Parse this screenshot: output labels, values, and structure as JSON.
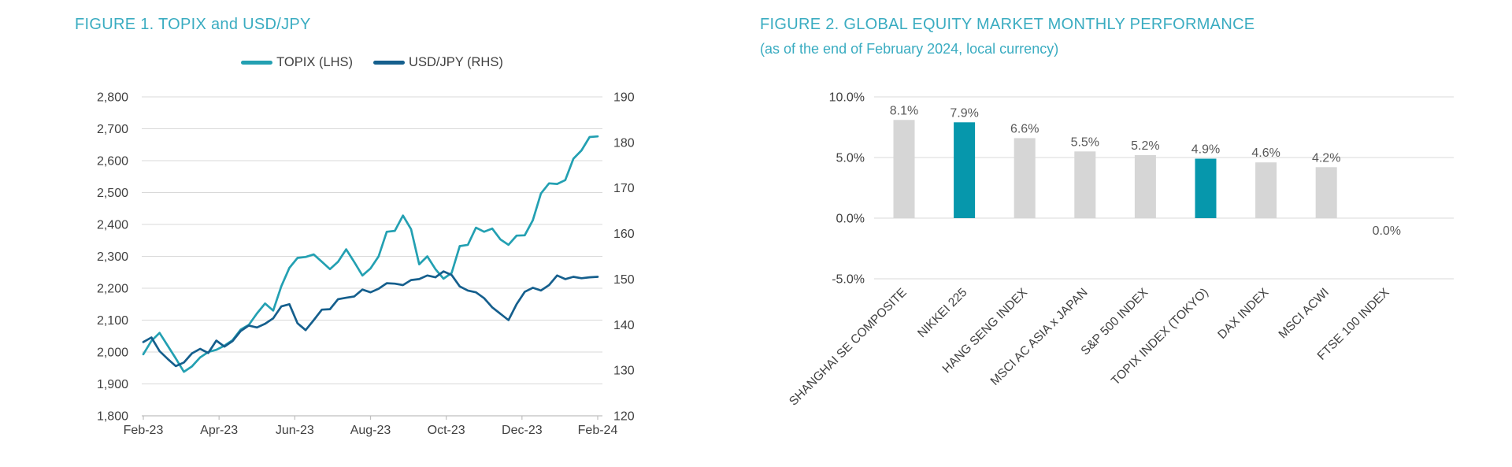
{
  "accent_color": "#3AACC1",
  "chart_data": [
    {
      "type": "line",
      "title": "FIGURE 1. TOPIX and USD/JPY",
      "legend_position": "top",
      "grid": true,
      "x_tick_labels": [
        "Feb-23",
        "Apr-23",
        "Jun-23",
        "Aug-23",
        "Oct-23",
        "Dec-23",
        "Feb-24"
      ],
      "left_axis": {
        "min": 1800,
        "max": 2800,
        "step": 100,
        "tick_labels": [
          "2,800",
          "2,700",
          "2,600",
          "2,500",
          "2,400",
          "2,300",
          "2,200",
          "2,100",
          "2,000",
          "1,900",
          "1,800"
        ]
      },
      "right_axis": {
        "min": 120,
        "max": 190,
        "step": 10,
        "tick_labels": [
          "190",
          "180",
          "170",
          "160",
          "150",
          "140",
          "130",
          "120"
        ]
      },
      "series": [
        {
          "name": "TOPIX (LHS)",
          "axis": "left",
          "color": "#23A0B2",
          "values": [
            1993,
            2035,
            2060,
            2020,
            1980,
            1938,
            1955,
            1983,
            2000,
            2007,
            2020,
            2037,
            2070,
            2085,
            2121,
            2152,
            2130,
            2206,
            2264,
            2295,
            2298,
            2306,
            2283,
            2260,
            2283,
            2322,
            2282,
            2240,
            2262,
            2300,
            2377,
            2380,
            2428,
            2385,
            2275,
            2300,
            2260,
            2230,
            2248,
            2332,
            2336,
            2390,
            2377,
            2387,
            2353,
            2336,
            2365,
            2366,
            2413,
            2497,
            2529,
            2527,
            2539,
            2606,
            2632,
            2674,
            2676
          ]
        },
        {
          "name": "USD/JPY (RHS)",
          "axis": "right",
          "color": "#155F8D",
          "values": [
            136.2,
            137.2,
            134.2,
            132.5,
            130.9,
            131.7,
            133.7,
            134.7,
            133.8,
            136.5,
            135.2,
            136.4,
            138.6,
            139.8,
            139.4,
            140.2,
            141.4,
            144.0,
            144.5,
            140.3,
            138.8,
            141.0,
            143.3,
            143.4,
            145.6,
            145.9,
            146.2,
            147.7,
            147.1,
            147.9,
            149.1,
            149.0,
            148.7,
            149.8,
            150.0,
            150.8,
            150.4,
            151.7,
            150.9,
            148.4,
            147.5,
            147.1,
            145.8,
            143.8,
            142.4,
            141.0,
            144.5,
            147.2,
            148.1,
            147.5,
            148.7,
            150.8,
            150.0,
            150.5,
            150.2,
            150.4,
            150.5
          ]
        }
      ],
      "colors": {
        "grid": "#D9D9D9",
        "axis_line": "#BFBFBF",
        "axis_text": "#404040"
      }
    },
    {
      "type": "bar",
      "title": "FIGURE 2. GLOBAL EQUITY MARKET MONTHLY PERFORMANCE",
      "subtitle": "(as of the end of February 2024, local currency)",
      "grid": true,
      "ylim": [
        -5,
        10
      ],
      "y_tick_values": [
        10,
        5,
        0,
        -5
      ],
      "y_tick_labels": [
        "10.0%",
        "5.0%",
        "0.0%",
        "-5.0%"
      ],
      "categories": [
        "SHANGHAI SE COMPOSITE",
        "NIKKEI 225",
        "HANG SENG INDEX",
        "MSCI AC ASIA x JAPAN",
        "S&P 500 INDEX",
        "TOPIX INDEX (TOKYO)",
        "DAX INDEX",
        "MSCI ACWI",
        "FTSE 100 INDEX"
      ],
      "values": [
        8.1,
        7.9,
        6.6,
        5.5,
        5.2,
        4.9,
        4.6,
        4.2,
        0.0
      ],
      "value_labels": [
        "8.1%",
        "7.9%",
        "6.6%",
        "5.5%",
        "5.2%",
        "4.9%",
        "4.6%",
        "4.2%",
        "0.0%"
      ],
      "bar_colors": [
        "#D6D6D6",
        "#0697AC",
        "#D6D6D6",
        "#D6D6D6",
        "#D6D6D6",
        "#0697AC",
        "#D6D6D6",
        "#D6D6D6",
        "#D6D6D6"
      ],
      "colors": {
        "grid": "#D9D9D9",
        "axis_text": "#404040",
        "value_text": "#595959"
      }
    }
  ]
}
